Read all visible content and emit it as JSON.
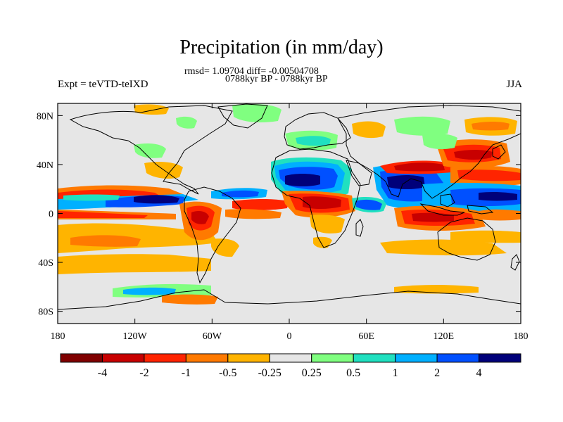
{
  "title": "Precipitation (in mm/day)",
  "stats_line": "rmsd= 1.09704 diff= -0.00504708",
  "period_line": "0788kyr BP - 0788kyr BP",
  "left_label": "Expt = teVTD-teIXD",
  "right_label": "JJA",
  "map": {
    "projection": "cylindrical-equidistant",
    "lat_ticks": [
      {
        "value": 80,
        "label": "80N"
      },
      {
        "value": 40,
        "label": "40N"
      },
      {
        "value": 0,
        "label": "0"
      },
      {
        "value": -40,
        "label": "40S"
      },
      {
        "value": -80,
        "label": "80S"
      }
    ],
    "lon_ticks": [
      {
        "value": -180,
        "label": "180"
      },
      {
        "value": -120,
        "label": "120W"
      },
      {
        "value": -60,
        "label": "60W"
      },
      {
        "value": 0,
        "label": "0"
      },
      {
        "value": 60,
        "label": "60E"
      },
      {
        "value": 120,
        "label": "120E"
      },
      {
        "value": 180,
        "label": "180"
      }
    ]
  },
  "colorbar": {
    "colors": [
      "#800000",
      "#c80000",
      "#ff2400",
      "#ff7a00",
      "#ffb400",
      "#e6e6e6",
      "#80ff80",
      "#20e0c0",
      "#00b0ff",
      "#0050ff",
      "#00007a"
    ],
    "labels": [
      "-4",
      "-2",
      "-1",
      "-0.5",
      "-0.25",
      "0.25",
      "0.5",
      "1",
      "2",
      "4"
    ]
  }
}
